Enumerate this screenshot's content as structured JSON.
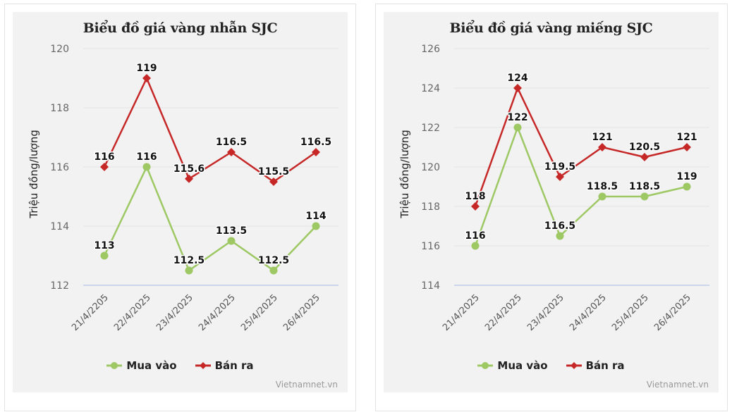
{
  "chart_data": [
    {
      "type": "line",
      "title": "Biểu đồ giá vàng nhẫn SJC",
      "xlabel": "",
      "ylabel": "Triệu đồng/lượng",
      "categories": [
        "21/4/2205",
        "22/4/2025",
        "23/4/2025",
        "24/4/2025",
        "25/4/2025",
        "26/4/2025"
      ],
      "ylim": [
        112,
        120
      ],
      "yticks": [
        112,
        114,
        116,
        118,
        120
      ],
      "grid": true,
      "legend": "bottom-center",
      "series": [
        {
          "name": "Mua vào",
          "color": "#9dc863",
          "marker": "circle",
          "values": [
            113,
            116,
            112.5,
            113.5,
            112.5,
            114
          ],
          "labels": [
            "113",
            "116",
            "112.5",
            "113.5",
            "112.5",
            "114"
          ]
        },
        {
          "name": "Bán ra",
          "color": "#c62828",
          "marker": "diamond",
          "values": [
            116,
            119,
            115.6,
            116.5,
            115.5,
            116.5
          ],
          "labels": [
            "116",
            "119",
            "115.6",
            "116.5",
            "115.5",
            "116.5"
          ]
        }
      ],
      "credit": "Vietnamnet.vn"
    },
    {
      "type": "line",
      "title": "Biểu đồ giá vàng miếng SJC",
      "xlabel": "",
      "ylabel": "Triệu đồng/lượng",
      "categories": [
        "21/4/2025",
        "22/4/2025",
        "23/4/2025",
        "24/4/2025",
        "25/4/2025",
        "26/4/2025"
      ],
      "ylim": [
        114,
        126
      ],
      "yticks": [
        114,
        116,
        118,
        120,
        122,
        124,
        126
      ],
      "grid": true,
      "legend": "bottom-center",
      "series": [
        {
          "name": "Mua vào",
          "color": "#9dc863",
          "marker": "circle",
          "values": [
            116,
            122,
            116.5,
            118.5,
            118.5,
            119
          ],
          "labels": [
            "116",
            "122",
            "116.5",
            "118.5",
            "118.5",
            "119"
          ]
        },
        {
          "name": "Bán ra",
          "color": "#c62828",
          "marker": "diamond",
          "values": [
            118,
            124,
            119.5,
            121,
            120.5,
            121
          ],
          "labels": [
            "118",
            "124",
            "119.5",
            "121",
            "120.5",
            "121"
          ]
        }
      ],
      "credit": "Vietnamnet.vn"
    }
  ]
}
